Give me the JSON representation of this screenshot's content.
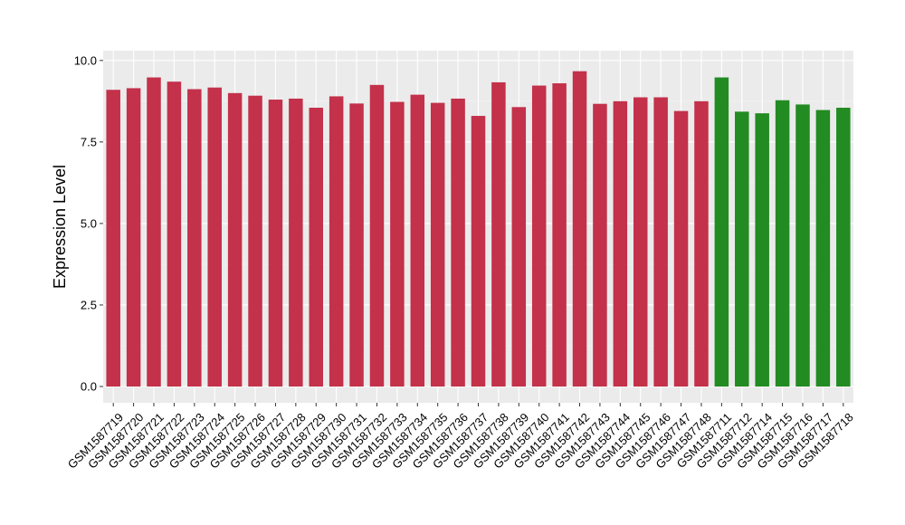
{
  "chart_data": {
    "type": "bar",
    "title": "",
    "xlabel": "",
    "ylabel": "Expression Level",
    "ylim": [
      0,
      10
    ],
    "yticks": [
      "0.0",
      "2.5",
      "5.0",
      "7.5",
      "10.0"
    ],
    "ytick_values": [
      0,
      2.5,
      5,
      7.5,
      10
    ],
    "grid": true,
    "legend": "none",
    "colors": {
      "group_a": "#c3314a",
      "group_b": "#228b22",
      "panel": "#ebebeb",
      "grid_major": "#ffffff",
      "grid_minor": "#f4f4f4"
    },
    "categories": [
      "GSM1587719",
      "GSM1587720",
      "GSM1587721",
      "GSM1587722",
      "GSM1587723",
      "GSM1587724",
      "GSM1587725",
      "GSM1587726",
      "GSM1587727",
      "GSM1587728",
      "GSM1587729",
      "GSM1587730",
      "GSM1587731",
      "GSM1587732",
      "GSM1587733",
      "GSM1587734",
      "GSM1587735",
      "GSM1587736",
      "GSM1587737",
      "GSM1587738",
      "GSM1587739",
      "GSM1587740",
      "GSM1587741",
      "GSM1587742",
      "GSM1587743",
      "GSM1587744",
      "GSM1587745",
      "GSM1587746",
      "GSM1587747",
      "GSM1587748",
      "GSM1587711",
      "GSM1587712",
      "GSM1587714",
      "GSM1587715",
      "GSM1587716",
      "GSM1587717",
      "GSM1587718"
    ],
    "values": [
      9.1,
      9.15,
      9.48,
      9.35,
      9.12,
      9.17,
      9.0,
      8.92,
      8.8,
      8.83,
      8.55,
      8.9,
      8.68,
      9.25,
      8.73,
      8.95,
      8.7,
      8.83,
      8.3,
      9.33,
      8.57,
      9.23,
      9.3,
      9.67,
      8.67,
      8.75,
      8.87,
      8.87,
      8.45,
      8.75,
      9.48,
      8.43,
      8.38,
      8.78,
      8.65,
      8.48,
      8.55
    ],
    "groups": [
      "a",
      "a",
      "a",
      "a",
      "a",
      "a",
      "a",
      "a",
      "a",
      "a",
      "a",
      "a",
      "a",
      "a",
      "a",
      "a",
      "a",
      "a",
      "a",
      "a",
      "a",
      "a",
      "a",
      "a",
      "a",
      "a",
      "a",
      "a",
      "a",
      "a",
      "b",
      "b",
      "b",
      "b",
      "b",
      "b",
      "b"
    ]
  }
}
